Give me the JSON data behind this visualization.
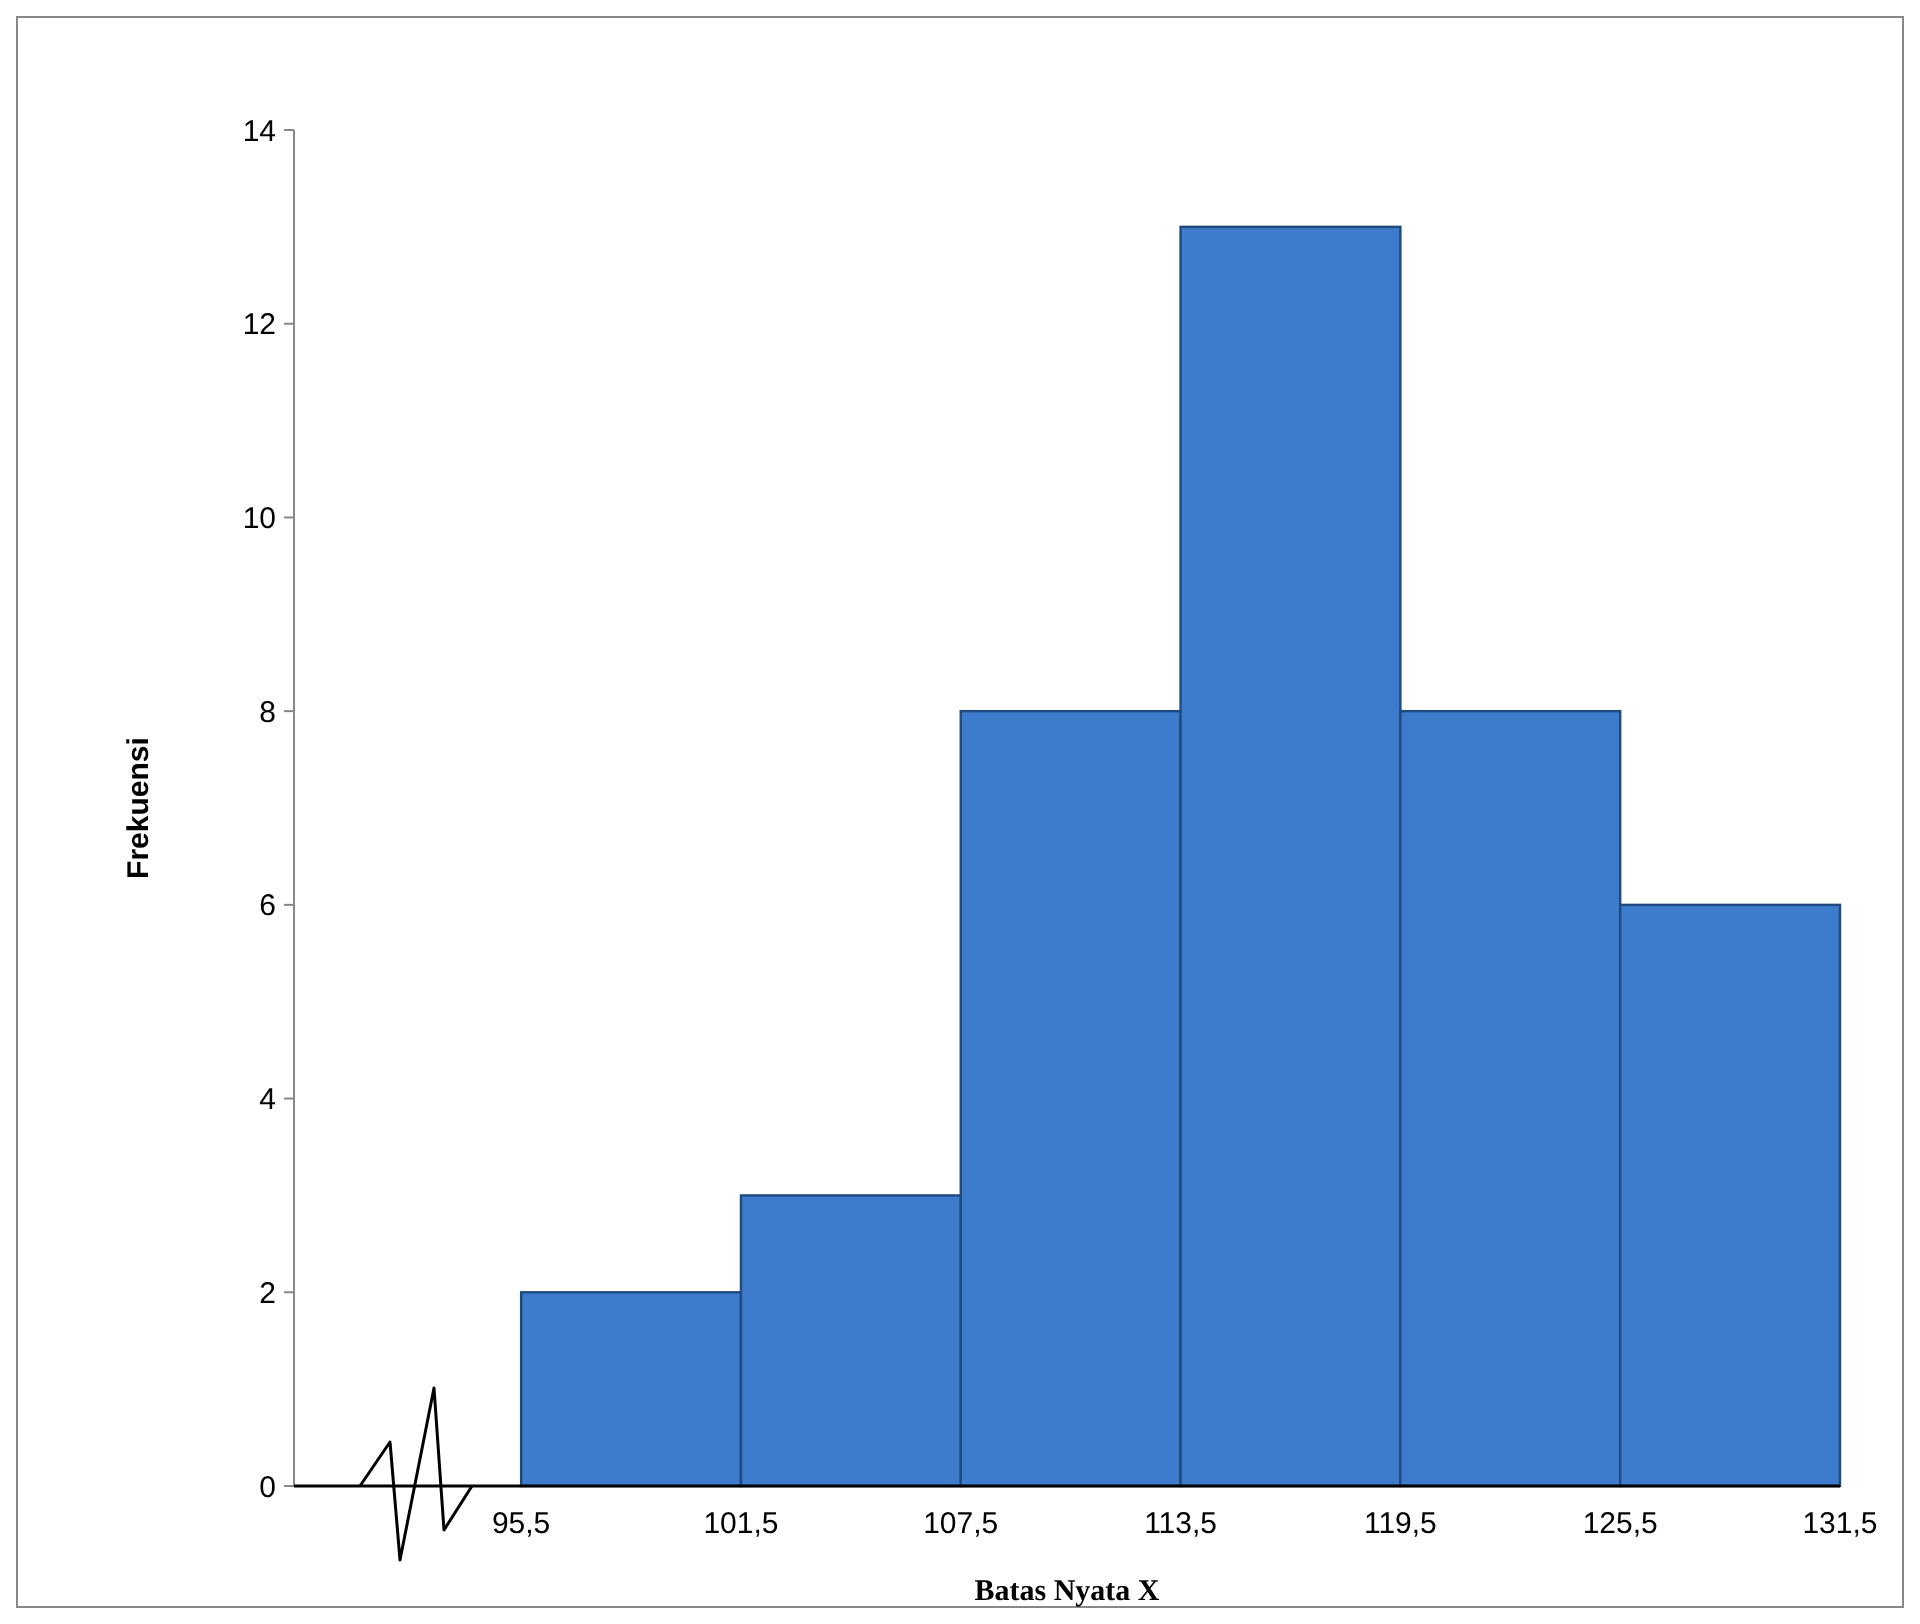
{
  "chart_data": {
    "type": "histogram",
    "xlabel": "Batas Nyata X",
    "ylabel": "Frekuensi",
    "bins": [
      95.5,
      101.5,
      107.5,
      113.5,
      119.5,
      125.5,
      131.5
    ],
    "values": [
      2,
      3,
      8,
      13,
      8,
      6
    ],
    "color": "#3d7ccc",
    "xlim": [
      89.3,
      131.5
    ],
    "xticks": [
      {
        "value": 95.5,
        "label": "95,5"
      },
      {
        "value": 101.5,
        "label": "101,5"
      },
      {
        "value": 107.5,
        "label": "107,5"
      },
      {
        "value": 113.5,
        "label": "113,5"
      },
      {
        "value": 119.5,
        "label": "119,5"
      },
      {
        "value": 125.5,
        "label": "125,5"
      },
      {
        "value": 131.5,
        "label": "131,5"
      }
    ],
    "ylim": [
      0,
      14
    ],
    "yticks": [
      0,
      2,
      4,
      6,
      8,
      10,
      12,
      14
    ],
    "grid": false
  }
}
